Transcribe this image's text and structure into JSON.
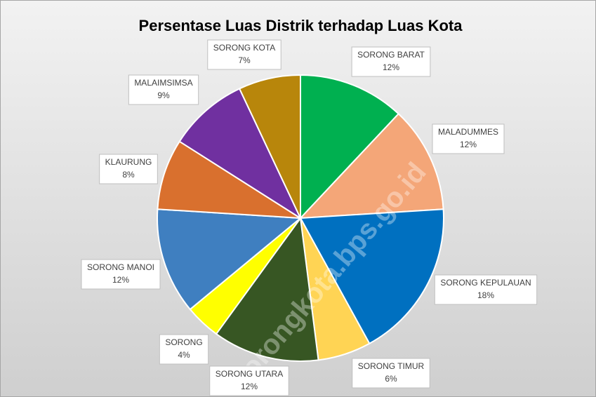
{
  "chart_data": {
    "type": "pie",
    "title": "Persentase Luas Distrik terhadap Luas Kota",
    "categories": [
      "SORONG BARAT",
      "MALADUMMES",
      "SORONG KEPULAUAN",
      "SORONG TIMUR",
      "SORONG UTARA",
      "SORONG",
      "SORONG MANOI",
      "KLAURUNG",
      "MALAIMSIMSA",
      "SORONG KOTA"
    ],
    "values": [
      12,
      12,
      18,
      6,
      12,
      4,
      12,
      8,
      9,
      7
    ],
    "value_labels": [
      "12%",
      "12%",
      "18%",
      "6%",
      "12%",
      "4%",
      "12%",
      "8%",
      "9%",
      "7%"
    ],
    "colors": [
      "#00b050",
      "#f4a678",
      "#0070c0",
      "#ffd454",
      "#375623",
      "#ffff00",
      "#3f7fc0",
      "#d9702e",
      "#7030a0",
      "#b8860b"
    ],
    "watermark": "sorongkota.bps.go.id"
  }
}
